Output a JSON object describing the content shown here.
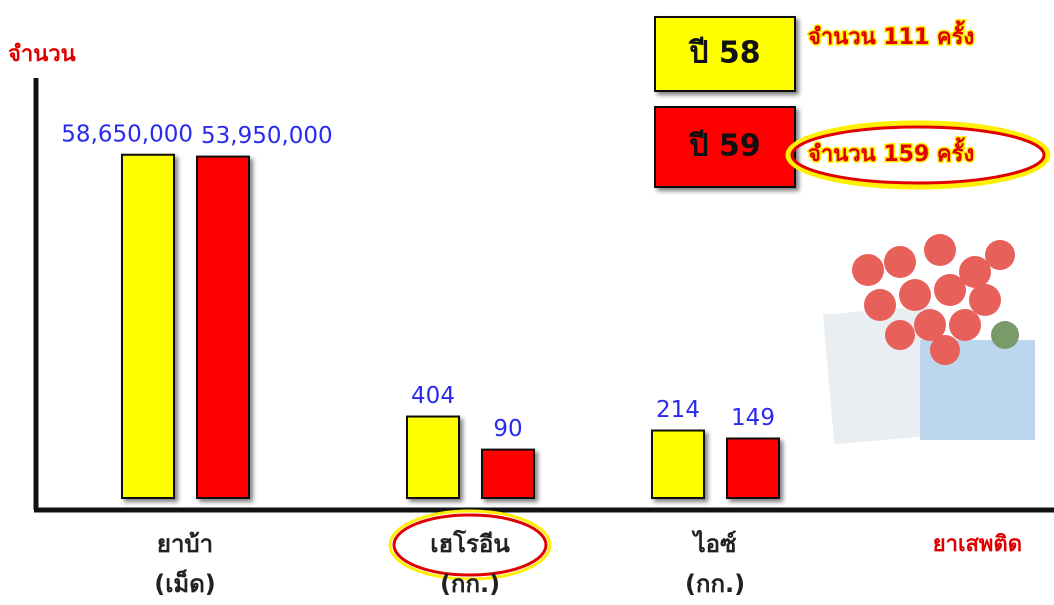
{
  "chart_data": {
    "type": "bar",
    "y_label": "จำนวน",
    "x_label": "ยาเสพติด",
    "categories": [
      "ยาบ้า",
      "เฮโรอีน",
      "ไอซ์"
    ],
    "category_units": [
      "(เม็ด)",
      "(กก.)",
      "(กก.)"
    ],
    "log_scale": true,
    "ylim": [
      10,
      100000000
    ],
    "series": [
      {
        "name": "ปี 58",
        "note": "จำนวน 111 ครั้ง",
        "color": "#ffff00",
        "values": [
          58650000,
          404,
          214
        ],
        "value_labels": [
          "58,650,000",
          "404",
          "214"
        ]
      },
      {
        "name": "ปี 59",
        "note": "จำนวน 159 ครั้ง",
        "color": "#ff0000",
        "values": [
          53950000,
          90,
          149
        ],
        "value_labels": [
          "53,950,000",
          "90",
          "149"
        ]
      }
    ]
  }
}
